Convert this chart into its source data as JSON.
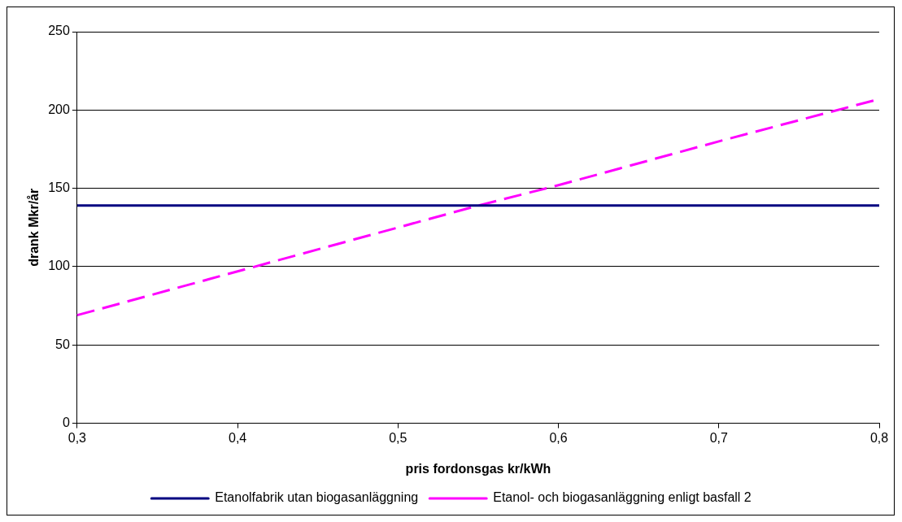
{
  "chart_data": {
    "type": "line",
    "xlabel": "pris fordonsgas kr/kWh",
    "ylabel": "drank Mkr/år",
    "xlim": [
      0.3,
      0.8
    ],
    "xticks": [
      {
        "value": 0.3,
        "label": "0,3"
      },
      {
        "value": 0.4,
        "label": "0,4"
      },
      {
        "value": 0.5,
        "label": "0,5"
      },
      {
        "value": 0.6,
        "label": "0,6"
      },
      {
        "value": 0.7,
        "label": "0,7"
      },
      {
        "value": 0.8,
        "label": "0,8"
      }
    ],
    "ylim": [
      0,
      250
    ],
    "yticks": [
      0,
      50,
      100,
      150,
      200,
      250
    ],
    "grid": "y",
    "legend": "bottom",
    "marker": "none",
    "series": [
      {
        "name": "Etanolfabrik utan biogasanläggning",
        "color": "#000080",
        "line_style": "solid",
        "x": [
          0.3,
          0.8
        ],
        "values": [
          139,
          139
        ]
      },
      {
        "name": "Etanol- och biogasanläggning enligt basfall 2",
        "color": "#ff00ff",
        "line_style": "dashed",
        "x": [
          0.3,
          0.4,
          0.5,
          0.55,
          0.6,
          0.7,
          0.8
        ],
        "values": [
          69,
          97,
          125,
          139,
          152,
          180,
          207
        ]
      }
    ]
  }
}
